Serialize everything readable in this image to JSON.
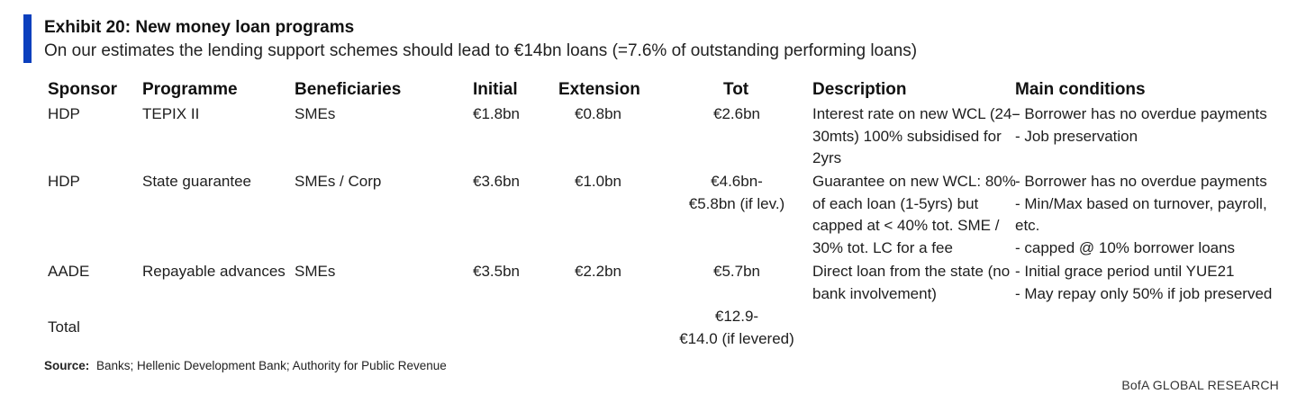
{
  "title": "Exhibit 20: New money loan programs",
  "subtitle": "On our estimates the lending support schemes should lead to €14bn loans (=7.6% of outstanding performing loans)",
  "headers": {
    "sponsor": "Sponsor",
    "programme": "Programme",
    "beneficiaries": "Beneficiaries",
    "initial": "Initial",
    "extension": "Extension",
    "tot": "Tot",
    "description": "Description",
    "conditions": "Main conditions"
  },
  "rows": [
    {
      "sponsor": "HDP",
      "programme": "TEPIX II",
      "beneficiaries": "SMEs",
      "initial": "€1.8bn",
      "extension": "€0.8bn",
      "tot": [
        "€2.6bn"
      ],
      "description": [
        "Interest rate on new WCL (24-",
        "30mts) 100% subsidised for",
        "2yrs"
      ],
      "conditions": [
        "- Borrower has no overdue payments",
        "- Job preservation"
      ]
    },
    {
      "sponsor": "HDP",
      "programme": "State guarantee",
      "beneficiaries": "SMEs / Corp",
      "initial": "€3.6bn",
      "extension": "€1.0bn",
      "tot": [
        "€4.6bn-",
        "€5.8bn (if lev.)"
      ],
      "description": [
        "Guarantee on new WCL: 80%",
        "of each loan (1-5yrs) but",
        "capped at < 40% tot. SME /",
        "30% tot. LC for a fee"
      ],
      "conditions": [
        "- Borrower has no overdue payments",
        "- Min/Max based on turnover, payroll,",
        "etc.",
        "- capped @ 10% borrower loans"
      ]
    },
    {
      "sponsor": "AADE",
      "programme": "Repayable advances",
      "beneficiaries": "SMEs",
      "initial": "€3.5bn",
      "extension": "€2.2bn",
      "tot": [
        "€5.7bn"
      ],
      "description": [
        "Direct loan from the state (no",
        "bank involvement)"
      ],
      "conditions": [
        "- Initial  grace period until YUE21",
        "- May repay only 50% if job preserved"
      ]
    }
  ],
  "total": {
    "label": "Total",
    "tot": [
      "€12.9-",
      "€14.0 (if levered)"
    ]
  },
  "source": {
    "label": "Source:",
    "text": "Banks; Hellenic Development Bank; Authority for Public Revenue"
  },
  "brand": "BofA GLOBAL RESEARCH",
  "colors": {
    "accent": "#0b3fbd"
  }
}
